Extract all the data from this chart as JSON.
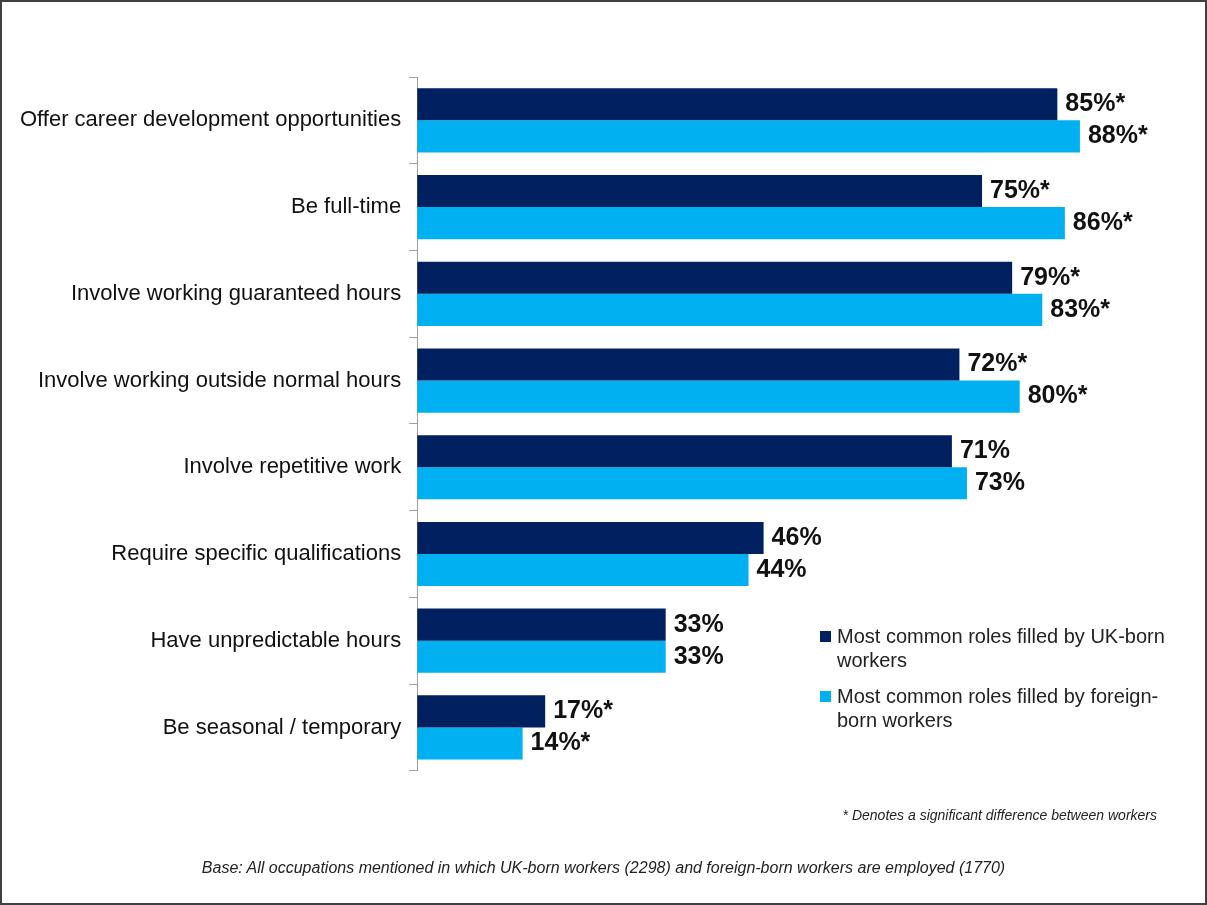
{
  "chart_data": {
    "type": "bar",
    "orientation": "horizontal",
    "legend": "bottom right",
    "categories": [
      "Offer career development opportunities",
      "Be full-time",
      "Involve working guaranteed hours",
      "Involve working outside normal hours",
      "Involve repetitive work",
      "Require specific qualifications",
      "Have unpredictable hours",
      "Be seasonal / temporary"
    ],
    "series": [
      {
        "name": "Most common roles filled by UK-born workers",
        "color": "#002060",
        "values": [
          85,
          75,
          79,
          72,
          71,
          46,
          33,
          17
        ],
        "value_labels": [
          "85%*",
          "75%*",
          "79%*",
          "72%*",
          "71%",
          "46%",
          "33%",
          "17%*"
        ]
      },
      {
        "name": "Most common roles filled by foreign-born workers",
        "color": "#00b0f0",
        "values": [
          88,
          86,
          83,
          80,
          73,
          44,
          33,
          14
        ],
        "value_labels": [
          "88%*",
          "86%*",
          "83%*",
          "80%*",
          "73%",
          "44%",
          "33%",
          "14%*"
        ]
      }
    ],
    "annotations": [
      "* Denotes a significant difference between workers",
      "Base: All  occupations  mentioned  in which  UK-born workers (2298) and foreign-born workers are employed (1770)"
    ]
  }
}
